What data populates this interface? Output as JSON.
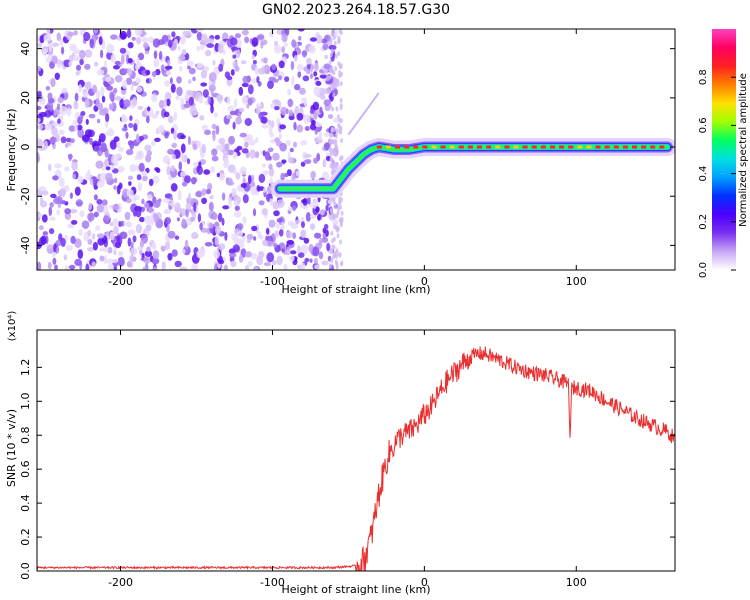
{
  "title": "GN02.2023.264.18.57.G30",
  "chart_data": [
    {
      "type": "heatmap",
      "title": "GN02.2023.264.18.57.G30",
      "xlabel": "Height of straight line (km)",
      "ylabel": "Frequency (Hz)",
      "xlim": [
        -255,
        165
      ],
      "ylim": [
        -50,
        48
      ],
      "x_ticks": [
        -200,
        -100,
        0,
        100
      ],
      "y_ticks": [
        -40,
        -20,
        0,
        20,
        40
      ],
      "colorbar": {
        "label": "Normalized spectral amplitude",
        "range": [
          0,
          1
        ],
        "ticks": [
          0.0,
          0.2,
          0.4,
          0.6,
          0.8
        ],
        "colors": [
          "#ffffff",
          "#c8a8f5",
          "#7a2ff0",
          "#4a00ff",
          "#0030ff",
          "#00a0ff",
          "#00e0e0",
          "#00ff60",
          "#a0ff00",
          "#ffe000",
          "#ff8000",
          "#ff2020",
          "#ff0060",
          "#ff40c0"
        ]
      },
      "ridge_line": {
        "x": [
          -95,
          -80,
          -70,
          -60,
          -55,
          -50,
          -45,
          -40,
          -35,
          -30,
          -20,
          -10,
          0,
          20,
          40,
          60,
          80,
          100,
          120,
          140,
          160
        ],
        "y": [
          -17,
          -17,
          -17,
          -17,
          -13,
          -9,
          -6,
          -3,
          -1,
          0,
          -1,
          -1,
          0,
          0,
          0,
          0,
          0,
          0,
          0,
          0,
          0
        ]
      },
      "noise_region_x": [
        -255,
        -58
      ],
      "grid": false
    },
    {
      "type": "line",
      "xlabel": "Height of straight line (km)",
      "ylabel": "SNR (10 * v/v)",
      "y_scale_label": "(x10⁴)",
      "xlim": [
        -255,
        165
      ],
      "ylim": [
        0,
        1.42
      ],
      "x_ticks": [
        -200,
        -100,
        0,
        100
      ],
      "y_ticks": [
        0.0,
        0.2,
        0.4,
        0.6,
        0.8,
        1.0,
        1.2
      ],
      "color": "#e83030",
      "series": [
        {
          "x": [
            -255,
            -200,
            -150,
            -100,
            -60,
            -45,
            -40,
            -35,
            -30,
            -25,
            -20,
            -15,
            -10,
            -5,
            0,
            5,
            10,
            15,
            20,
            25,
            30,
            35,
            40,
            45,
            50,
            60,
            70,
            80,
            90,
            95,
            96,
            97,
            100,
            110,
            120,
            130,
            140,
            150,
            160,
            165
          ],
          "values": [
            0.02,
            0.02,
            0.02,
            0.02,
            0.02,
            0.03,
            0.06,
            0.2,
            0.45,
            0.65,
            0.75,
            0.8,
            0.82,
            0.86,
            0.92,
            0.97,
            1.05,
            1.12,
            1.17,
            1.22,
            1.26,
            1.28,
            1.28,
            1.26,
            1.24,
            1.2,
            1.17,
            1.15,
            1.12,
            1.1,
            0.75,
            1.08,
            1.08,
            1.06,
            1.0,
            0.95,
            0.9,
            0.86,
            0.82,
            0.78
          ]
        }
      ],
      "grid": false
    }
  ]
}
